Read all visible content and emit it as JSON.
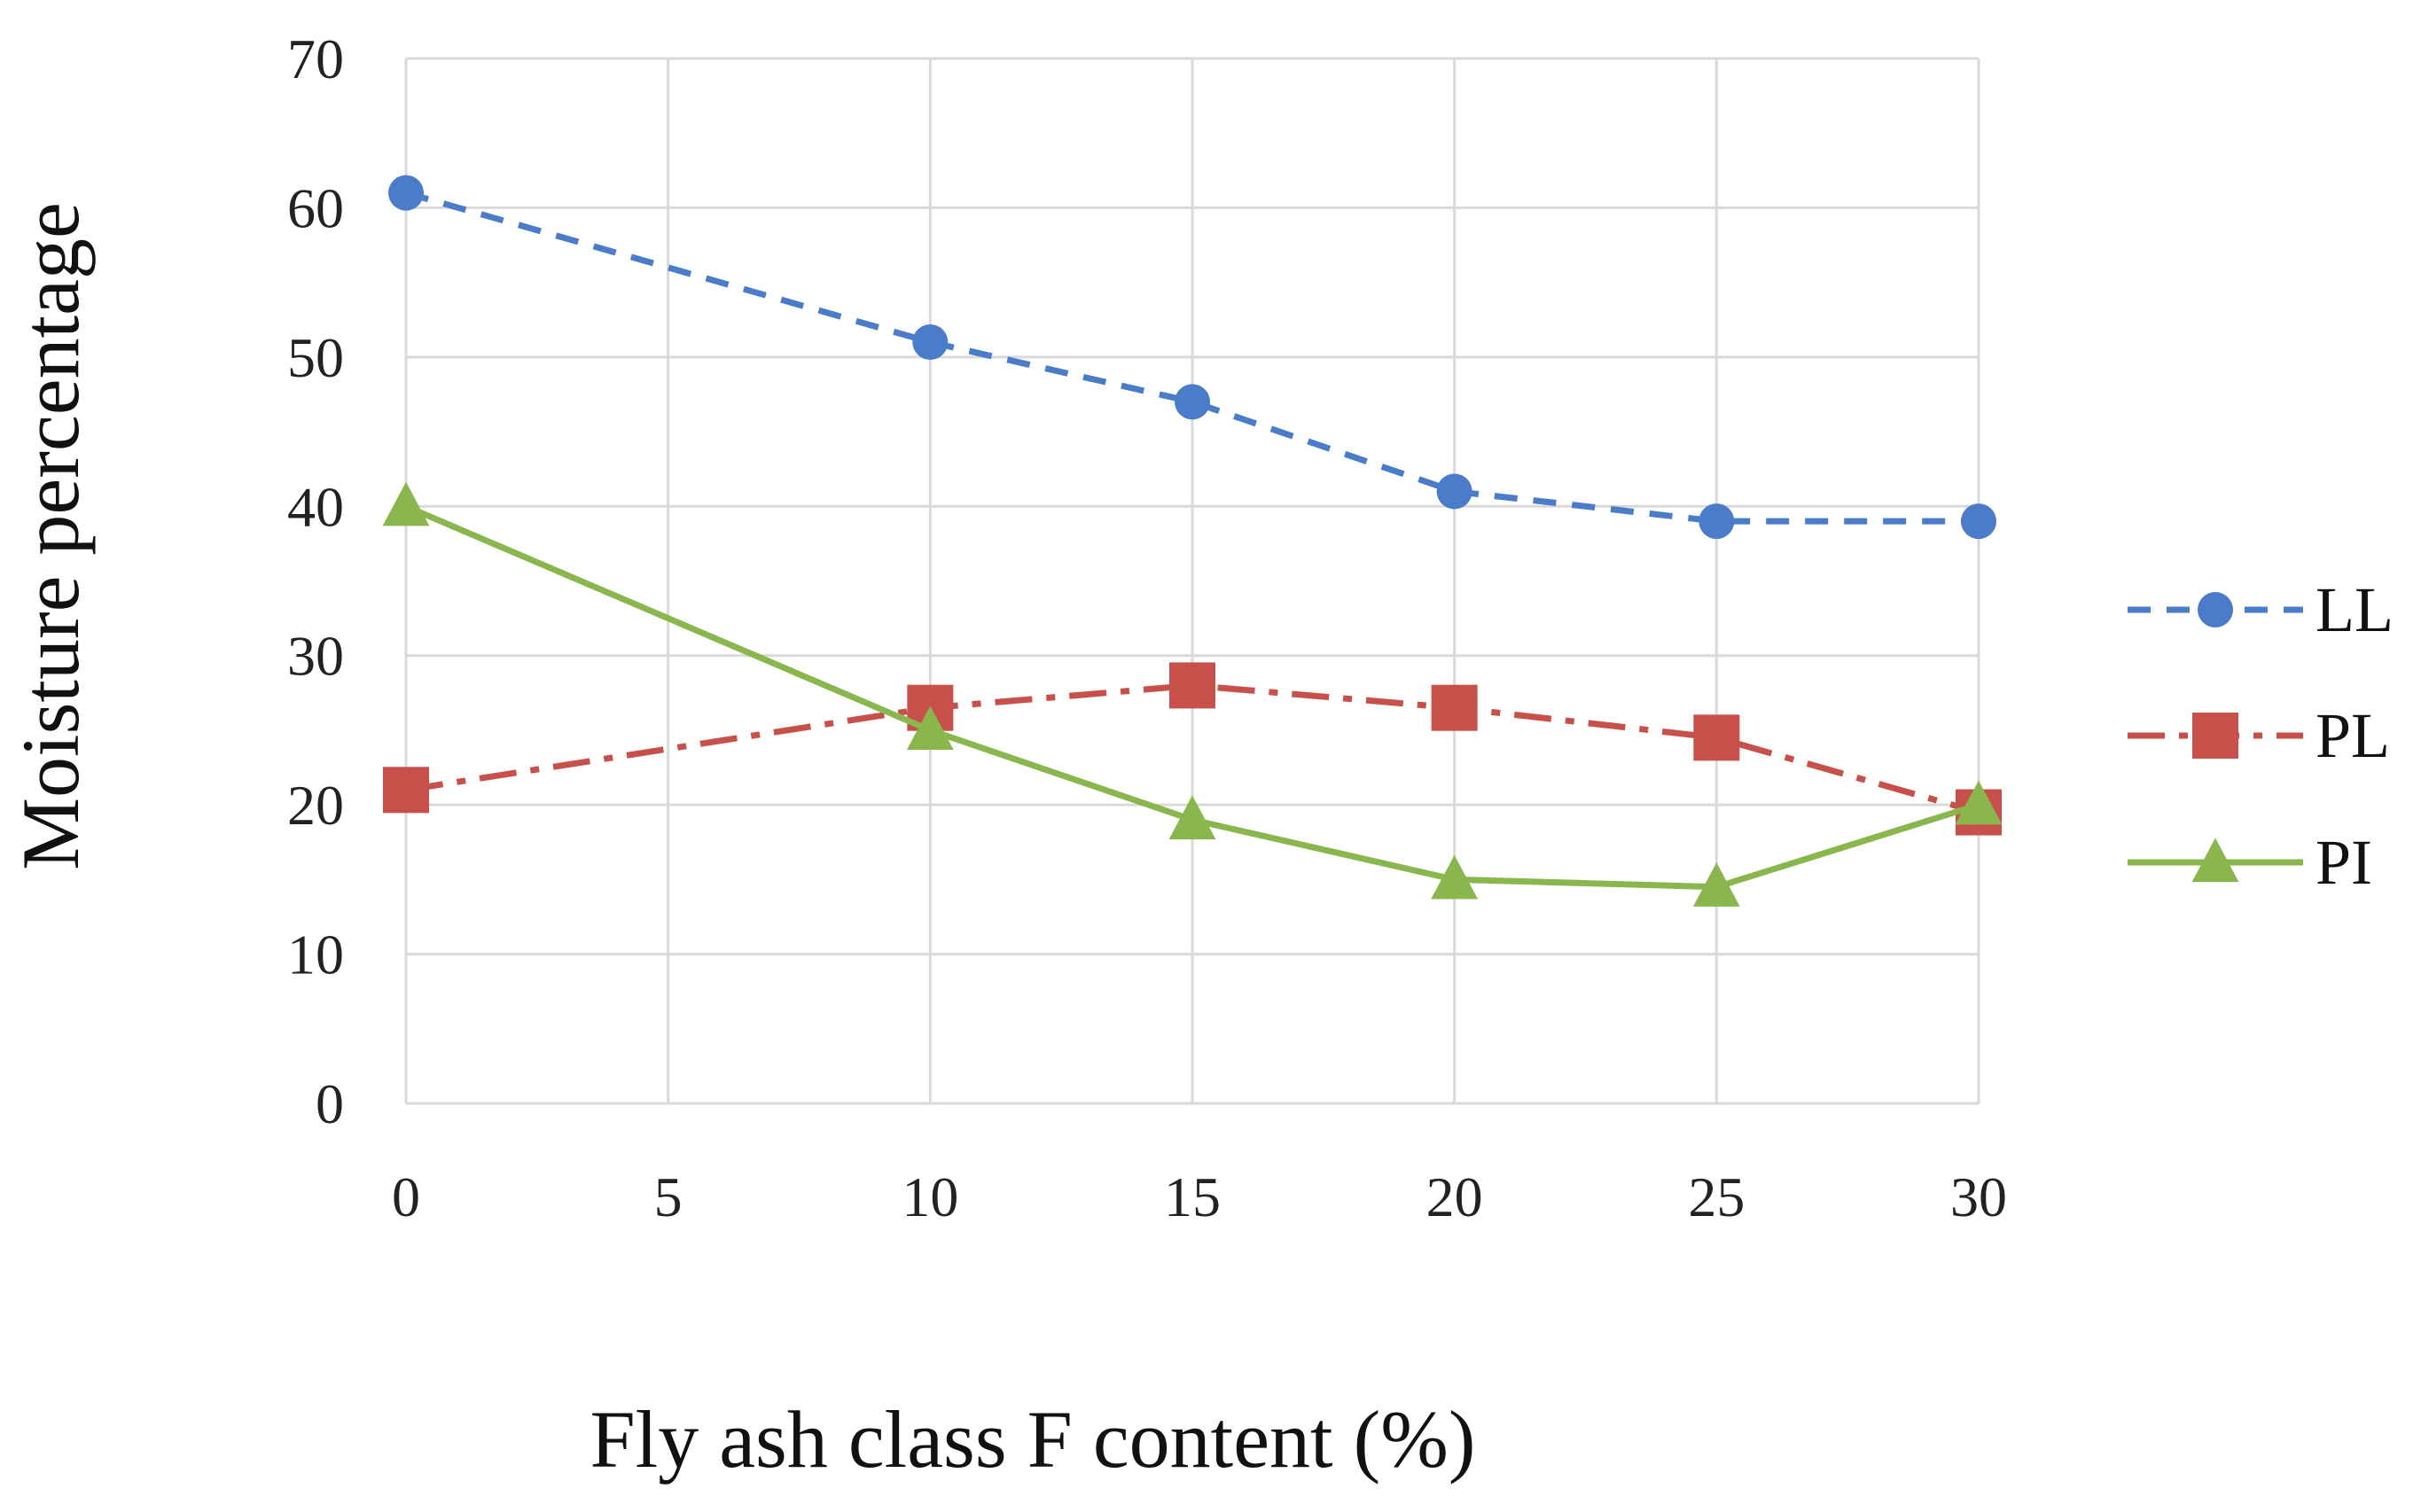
{
  "chart_data": {
    "type": "line",
    "xlabel": "Fly ash class F content (%)",
    "ylabel": "Moisture percentage",
    "xlim": [
      0,
      30
    ],
    "ylim": [
      0,
      70
    ],
    "xticks": [
      0,
      5,
      10,
      15,
      20,
      25,
      30
    ],
    "yticks": [
      0,
      10,
      20,
      30,
      40,
      50,
      60,
      70
    ],
    "grid": true,
    "legend_position": "right",
    "series": [
      {
        "name": "LL",
        "color": "#4a7cc9",
        "line_style": "dashed",
        "marker": "circle",
        "x": [
          0,
          10,
          15,
          20,
          25,
          30
        ],
        "y": [
          61,
          51,
          47,
          41,
          39,
          39
        ]
      },
      {
        "name": "PL",
        "color": "#c8504b",
        "line_style": "dash-dot",
        "marker": "square",
        "x": [
          0,
          10,
          15,
          20,
          25,
          30
        ],
        "y": [
          21,
          26.5,
          28,
          26.5,
          24.5,
          19.5
        ]
      },
      {
        "name": "PI",
        "color": "#8ab64e",
        "line_style": "solid",
        "marker": "triangle",
        "x": [
          0,
          10,
          15,
          20,
          25,
          30
        ],
        "y": [
          40,
          25,
          19,
          15,
          14.5,
          20
        ]
      }
    ]
  }
}
